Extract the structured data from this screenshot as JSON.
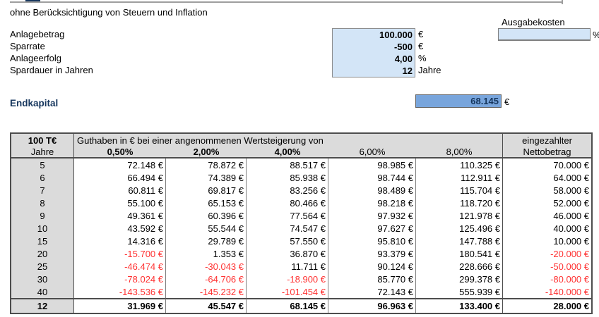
{
  "subtitle": "ohne Berücksichtigung von Steuern und Inflation",
  "inputs": {
    "rows": [
      {
        "label": "Anlagebetrag",
        "value": "100.000",
        "unit": "€"
      },
      {
        "label": "Sparrate",
        "value": "-500",
        "unit": "€"
      },
      {
        "label": "Anlageerfolg",
        "value": "4,00",
        "unit": "%"
      },
      {
        "label": "Spardauer in Jahren",
        "value": "12",
        "unit": "Jahre"
      }
    ],
    "ausgabekosten": {
      "label": "Ausgabekosten",
      "value": "",
      "unit": "%"
    }
  },
  "result": {
    "label": "Endkapital",
    "value": "68.145",
    "unit": "€"
  },
  "table": {
    "corner_title": "100 T€",
    "corner_sub": "Jahre",
    "span_header": "Guthaben in € bei einer angenommenen Wertsteigerung von",
    "last_col_header1": "eingezahlter",
    "last_col_header2": "Nettobetrag",
    "rate_headers": [
      {
        "label": "0,50%",
        "bold": true
      },
      {
        "label": "2,00%",
        "bold": true
      },
      {
        "label": "4,00%",
        "bold": true
      },
      {
        "label": "6,00%",
        "bold": false
      },
      {
        "label": "8,00%",
        "bold": false
      }
    ],
    "rows": [
      {
        "jahre": "5",
        "cells": [
          "72.148 €",
          "78.872 €",
          "88.517 €",
          "98.985 €",
          "110.325 €",
          "70.000 €"
        ]
      },
      {
        "jahre": "6",
        "cells": [
          "66.494 €",
          "74.389 €",
          "85.938 €",
          "98.744 €",
          "112.911 €",
          "64.000 €"
        ]
      },
      {
        "jahre": "7",
        "cells": [
          "60.811 €",
          "69.817 €",
          "83.256 €",
          "98.489 €",
          "115.704 €",
          "58.000 €"
        ]
      },
      {
        "jahre": "8",
        "cells": [
          "55.100 €",
          "65.153 €",
          "80.466 €",
          "98.218 €",
          "118.720 €",
          "52.000 €"
        ]
      },
      {
        "jahre": "9",
        "cells": [
          "49.361 €",
          "60.396 €",
          "77.564 €",
          "97.932 €",
          "121.978 €",
          "46.000 €"
        ]
      },
      {
        "jahre": "10",
        "cells": [
          "43.592 €",
          "55.544 €",
          "74.547 €",
          "97.627 €",
          "125.496 €",
          "40.000 €"
        ]
      },
      {
        "jahre": "15",
        "cells": [
          "14.316 €",
          "29.789 €",
          "57.550 €",
          "95.810 €",
          "147.788 €",
          "10.000 €"
        ]
      },
      {
        "jahre": "20",
        "cells": [
          "-15.700 €",
          "1.353 €",
          "36.870 €",
          "93.379 €",
          "180.541 €",
          "-20.000 €"
        ]
      },
      {
        "jahre": "25",
        "cells": [
          "-46.474 €",
          "-30.043 €",
          "11.711 €",
          "90.124 €",
          "228.666 €",
          "-50.000 €"
        ]
      },
      {
        "jahre": "30",
        "cells": [
          "-78.024 €",
          "-64.706 €",
          "-18.900 €",
          "85.770 €",
          "299.378 €",
          "-80.000 €"
        ]
      },
      {
        "jahre": "40",
        "cells": [
          "-143.536 €",
          "-145.232 €",
          "-101.454 €",
          "72.143 €",
          "555.939 €",
          "-140.000 €"
        ]
      }
    ],
    "footer": {
      "jahre": "12",
      "cells": [
        "31.969 €",
        "45.547 €",
        "68.145 €",
        "96.963 €",
        "133.400 €",
        "28.000 €"
      ]
    }
  },
  "colors": {
    "input-fill": "#D3E5F7",
    "result-fill": "#78A5DC",
    "navy": "#16365D",
    "grey": "#DBDBDB",
    "border-mid": "#808080",
    "border-dark": "#4D4D4D",
    "neg-red": "#FF3232",
    "line-grey": "#9E9E9E"
  }
}
